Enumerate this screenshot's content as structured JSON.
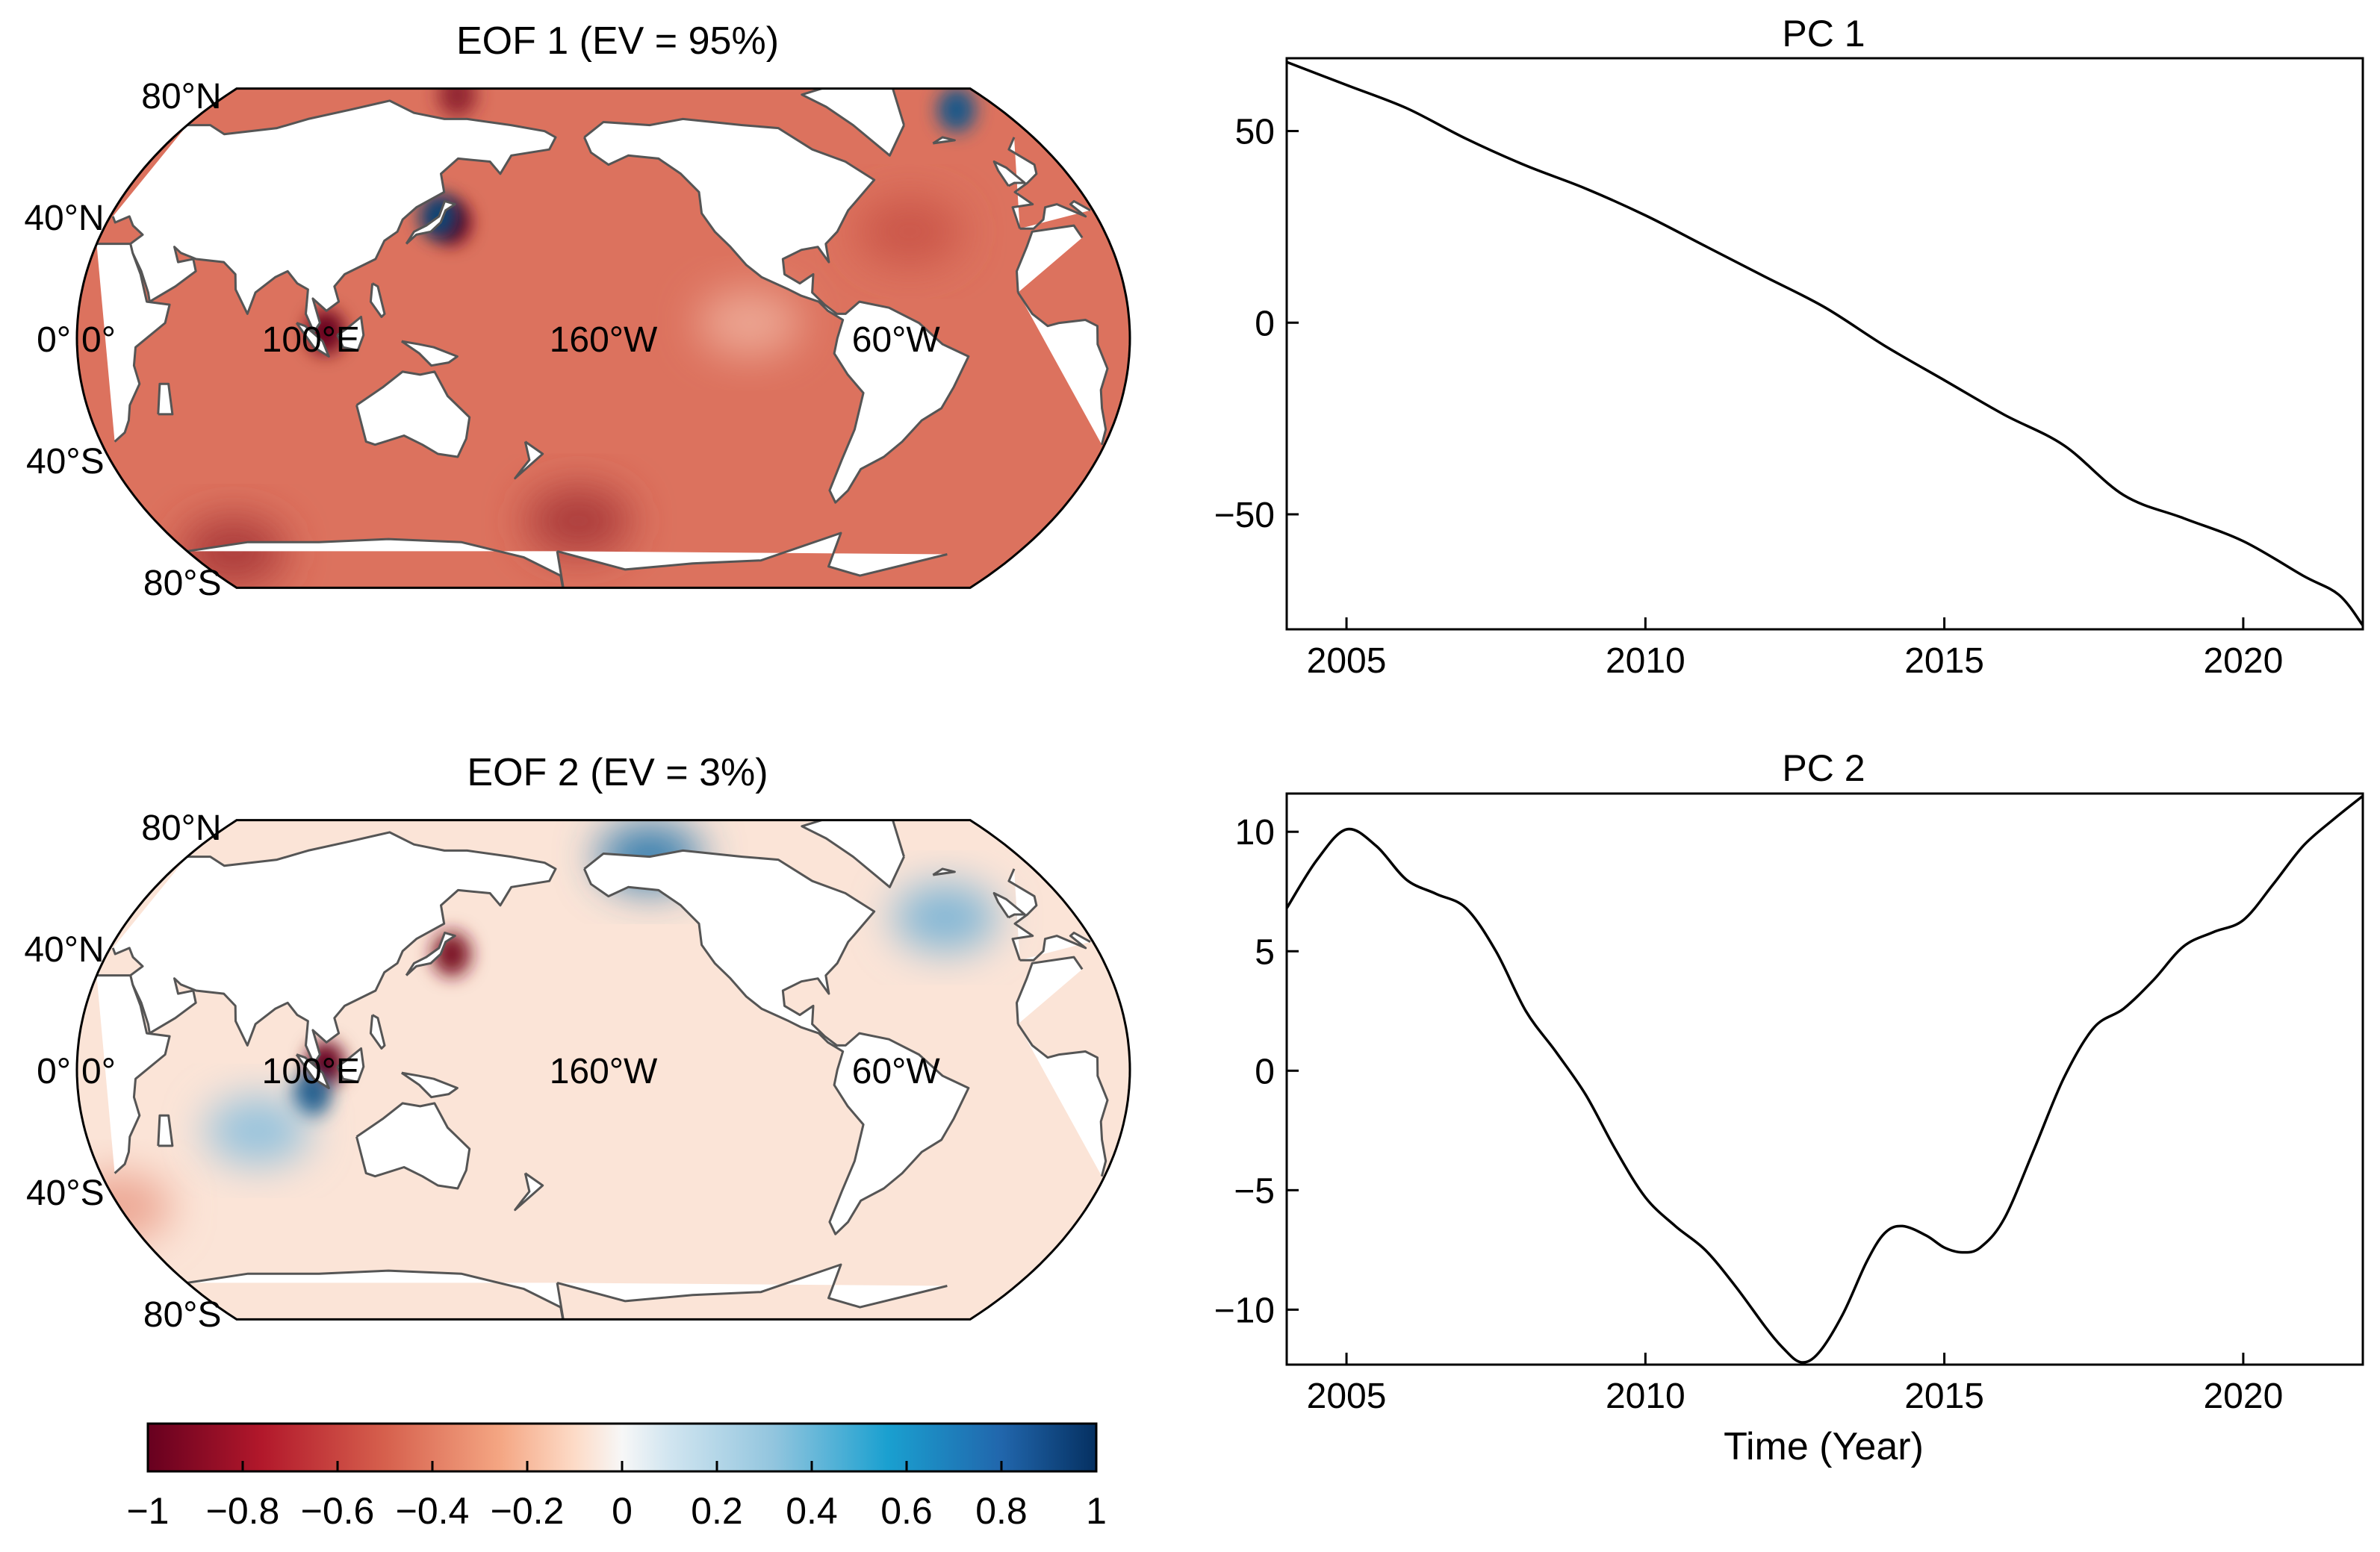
{
  "colors": {
    "neg_strong": "#67001f",
    "neg_mid": "#d6604d",
    "neg_light": "#fddbc7",
    "neutral": "#f7f7f7",
    "pos_light": "#d1e5f0",
    "pos_mid": "#4393c3",
    "pos_strong": "#053061",
    "coast": "#555555",
    "line": "#000000"
  },
  "chart_data": [
    {
      "type": "heatmap",
      "title": "EOF 1 (EV = 95%)",
      "lat_labels": [
        "80°N",
        "40°N",
        "0°",
        "40°S",
        "80°S"
      ],
      "lon_labels": [
        "0°",
        "100°E",
        "160°W",
        "60°W"
      ],
      "dominant_value": -0.45,
      "anomalies": [
        {
          "lon": 105,
          "lat": 2,
          "value": -1.0
        },
        {
          "lon": 145,
          "lat": 38,
          "value": -1.0
        },
        {
          "lon": 140,
          "lat": 40,
          "value": 0.9
        },
        {
          "lon": 0,
          "lat": 75,
          "value": 0.8
        },
        {
          "lon": 130,
          "lat": 80,
          "value": -0.8
        },
        {
          "lon": -110,
          "lat": 5,
          "value": -0.3
        },
        {
          "lon": -50,
          "lat": 35,
          "value": -0.55
        },
        {
          "lon": -170,
          "lat": -60,
          "value": -0.7
        },
        {
          "lon": 40,
          "lat": -70,
          "value": -0.7
        }
      ]
    },
    {
      "type": "heatmap",
      "title": "EOF 2 (EV = 3%)",
      "lat_labels": [
        "80°N",
        "40°N",
        "0°",
        "40°S",
        "80°S"
      ],
      "lon_labels": [
        "0°",
        "100°E",
        "160°W",
        "60°W"
      ],
      "dominant_value": -0.1,
      "anomalies": [
        {
          "lon": 105,
          "lat": 2,
          "value": -1.0
        },
        {
          "lon": 100,
          "lat": -8,
          "value": 0.8
        },
        {
          "lon": 145,
          "lat": 38,
          "value": -0.9
        },
        {
          "lon": 80,
          "lat": -20,
          "value": 0.3
        },
        {
          "lon": -30,
          "lat": 50,
          "value": 0.35
        },
        {
          "lon": 20,
          "lat": -45,
          "value": -0.3
        },
        {
          "lon": -140,
          "lat": 70,
          "value": 0.6
        }
      ]
    },
    {
      "type": "line",
      "title": "PC 1",
      "xlabel": "",
      "ylabel": "",
      "xlim": [
        2004,
        2022
      ],
      "ylim": [
        -80,
        69
      ],
      "xticks": [
        2005,
        2010,
        2015,
        2020
      ],
      "yticks": [
        50,
        0,
        -50
      ],
      "ytick_labels": [
        "50",
        "0",
        "−50"
      ],
      "x": [
        2004.0,
        2005.0,
        2006.0,
        2007.0,
        2008.0,
        2009.0,
        2010.0,
        2011.0,
        2012.0,
        2013.0,
        2014.0,
        2015.0,
        2016.0,
        2017.0,
        2018.0,
        2019.0,
        2020.0,
        2021.0,
        2021.6,
        2022.0
      ],
      "y": [
        68,
        62,
        56,
        48,
        41,
        35,
        28,
        20,
        12,
        4,
        -6,
        -15,
        -24,
        -32,
        -45,
        -51,
        -57,
        -66,
        -71,
        -79
      ]
    },
    {
      "type": "line",
      "title": "PC 2",
      "xlabel": "Time (Year)",
      "ylabel": "",
      "xlim": [
        2004,
        2022
      ],
      "ylim": [
        -12.3,
        11.6
      ],
      "xticks": [
        2005,
        2010,
        2015,
        2020
      ],
      "yticks": [
        10,
        5,
        0,
        -5,
        -10
      ],
      "ytick_labels": [
        "10",
        "5",
        "0",
        "−5",
        "−10"
      ],
      "x": [
        2004.0,
        2004.5,
        2005.0,
        2005.5,
        2006.0,
        2006.5,
        2007.0,
        2007.5,
        2008.0,
        2008.5,
        2009.0,
        2009.5,
        2010.0,
        2010.5,
        2011.0,
        2011.5,
        2012.0,
        2012.3,
        2012.6,
        2012.9,
        2013.3,
        2013.7,
        2014.0,
        2014.3,
        2014.7,
        2015.0,
        2015.3,
        2015.6,
        2016.0,
        2016.5,
        2017.0,
        2017.5,
        2018.0,
        2018.5,
        2019.0,
        2019.5,
        2020.0,
        2020.5,
        2021.0,
        2021.5,
        2022.0
      ],
      "y": [
        6.8,
        8.8,
        10.1,
        9.4,
        8.0,
        7.4,
        6.8,
        5.0,
        2.5,
        0.8,
        -1.0,
        -3.3,
        -5.3,
        -6.5,
        -7.5,
        -9.0,
        -10.7,
        -11.6,
        -12.2,
        -11.8,
        -10.2,
        -8.0,
        -6.8,
        -6.5,
        -6.9,
        -7.4,
        -7.6,
        -7.4,
        -6.2,
        -3.3,
        -0.3,
        1.8,
        2.6,
        3.8,
        5.2,
        5.8,
        6.3,
        7.8,
        9.4,
        10.5,
        11.5
      ]
    }
  ],
  "colorbar": {
    "min": -1,
    "max": 1,
    "ticks": [
      "−1",
      "−0.8",
      "−0.6",
      "−0.4",
      "−0.2",
      "0",
      "0.2",
      "0.4",
      "0.6",
      "0.8",
      "1"
    ]
  }
}
